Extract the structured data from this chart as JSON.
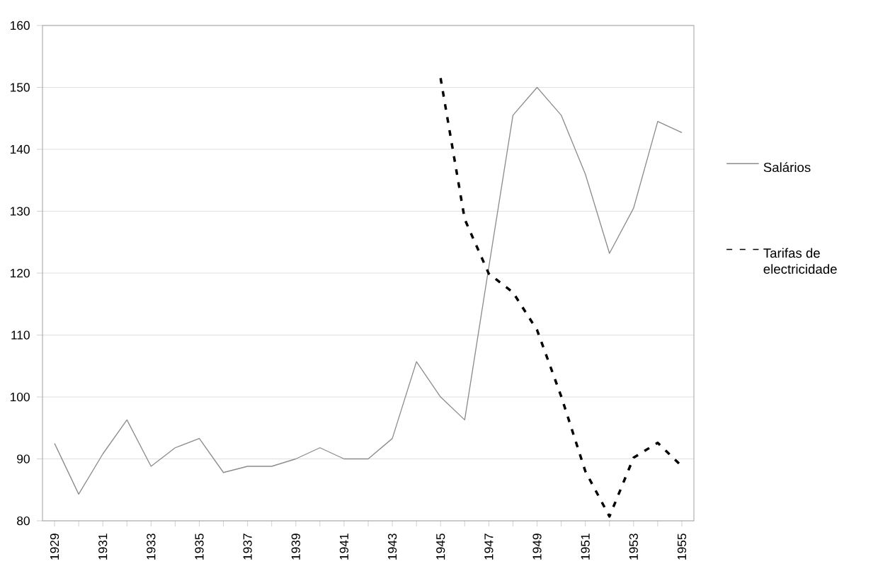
{
  "chart_data": {
    "type": "line",
    "categories": [
      "1929",
      null,
      "1931",
      null,
      "1933",
      null,
      "1935",
      null,
      "1937",
      null,
      "1939",
      null,
      "1941",
      null,
      "1943",
      null,
      "1945",
      null,
      "1947",
      null,
      "1949",
      null,
      "1951",
      null,
      "1953",
      null,
      "1955"
    ],
    "series": [
      {
        "name": "Salários",
        "color": "#8c8c8c",
        "line_style": "solid",
        "values": [
          92.5,
          84.3,
          90.8,
          96.3,
          88.8,
          91.8,
          93.3,
          87.8,
          88.8,
          88.8,
          90,
          91.8,
          90,
          90,
          93.3,
          105.7,
          100,
          96.3,
          121,
          145.5,
          150,
          145.5,
          136,
          123.2,
          130.5,
          144.5,
          142.7
        ]
      },
      {
        "name": "Tarifas de electricidade",
        "color": "#000000",
        "line_style": "dashed",
        "values": [
          null,
          null,
          null,
          null,
          null,
          null,
          null,
          null,
          null,
          null,
          null,
          null,
          null,
          null,
          null,
          null,
          151.5,
          128.7,
          119.9,
          116.9,
          110.8,
          100.1,
          88,
          80.7,
          90.2,
          92.6,
          88.8
        ]
      }
    ],
    "ylim": [
      80,
      160
    ],
    "yticks": [
      80,
      90,
      100,
      110,
      120,
      130,
      140,
      150,
      160
    ],
    "grid": "y",
    "legend": "right",
    "marker": "none"
  }
}
